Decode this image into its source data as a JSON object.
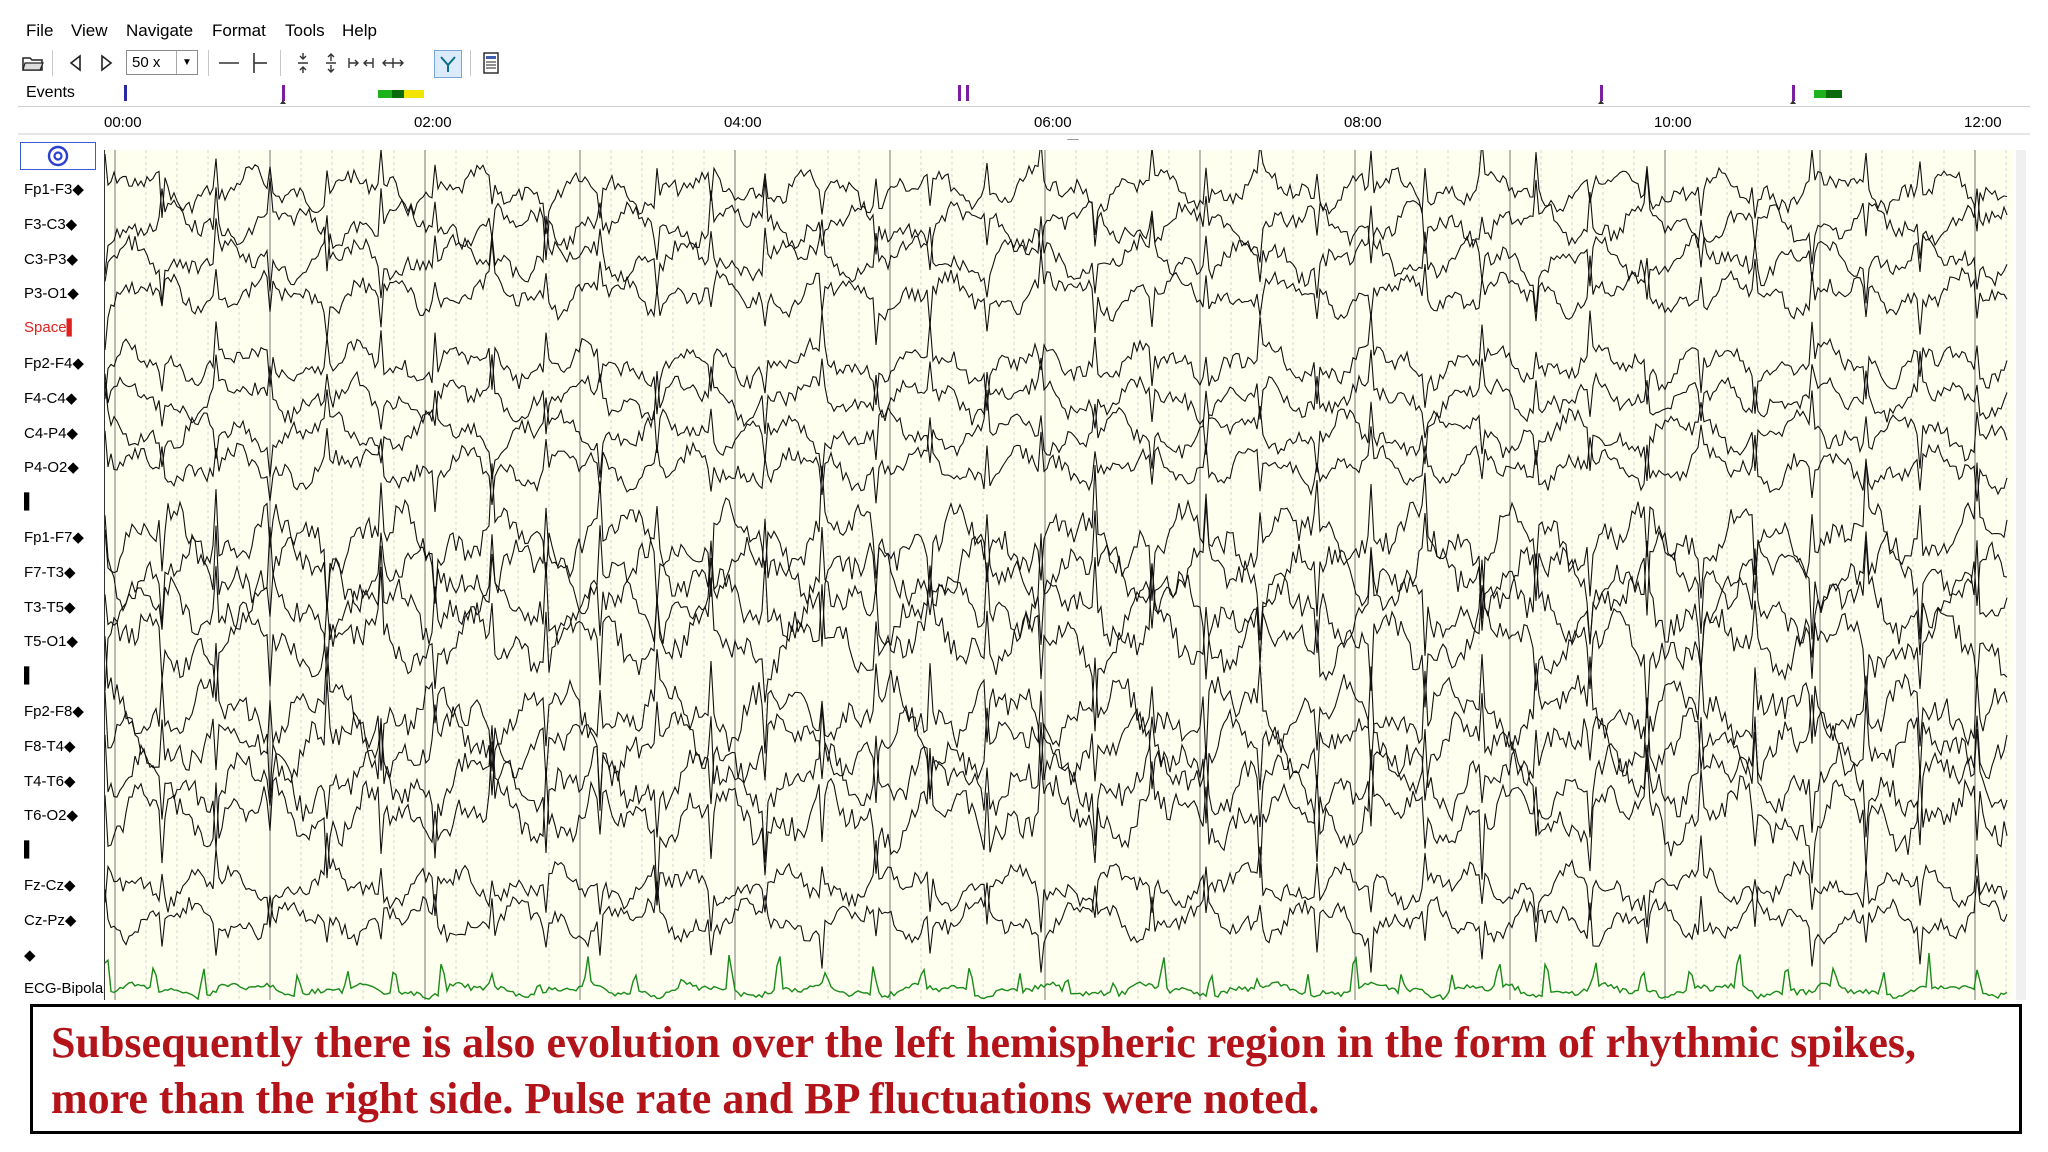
{
  "menu": [
    "File",
    "View",
    "Navigate",
    "Format",
    "Tools",
    "Help"
  ],
  "toolbar": {
    "zoom_value": "50 x",
    "zoom_arrow": "▼",
    "icons": [
      "open-folder-icon",
      "previous-icon",
      "next-icon",
      "zoom-dropdown",
      "line-icon",
      "baseline-icon",
      "amplitude-decrease-icon",
      "amplitude-increase-icon",
      "time-compress-icon",
      "time-expand-icon",
      "filter-icon",
      "montage-icon"
    ]
  },
  "events": {
    "label": "Events",
    "colors": {
      "marker": "#7a1fa2",
      "green": "#1db31d",
      "dark_green": "#0b6b0b",
      "yellow": "#f2e600"
    }
  },
  "timeline": {
    "labels": [
      "00:00",
      "02:00",
      "04:00",
      "06:00",
      "08:00",
      "10:00",
      "12:00"
    ]
  },
  "channels": {
    "labels": [
      "Fp1-F3◆",
      "F3-C3◆",
      "C3-P3◆",
      "P3-O1◆",
      "Space▌",
      "Fp2-F4◆",
      "F4-C4◆",
      "C4-P4◆",
      "P4-O2◆",
      "▌",
      "Fp1-F7◆",
      "F7-T3◆",
      "T3-T5◆",
      "T5-O1◆",
      "▌",
      "Fp2-F8◆",
      "F8-T4◆",
      "T4-T6◆",
      "T6-O2◆",
      "▌",
      "Fz-Cz◆",
      "Cz-Pz◆",
      "◆",
      "ECG-Bipolar"
    ],
    "colors": {
      "trace": "#111111",
      "ecg": "#1a8a1a",
      "space_label": "#e0201c"
    }
  },
  "caption": {
    "text": "Subsequently there is also evolution over the left hemispheric region in the form of rhythmic spikes, more than the right side. Pulse rate and BP fluctuations were noted."
  }
}
